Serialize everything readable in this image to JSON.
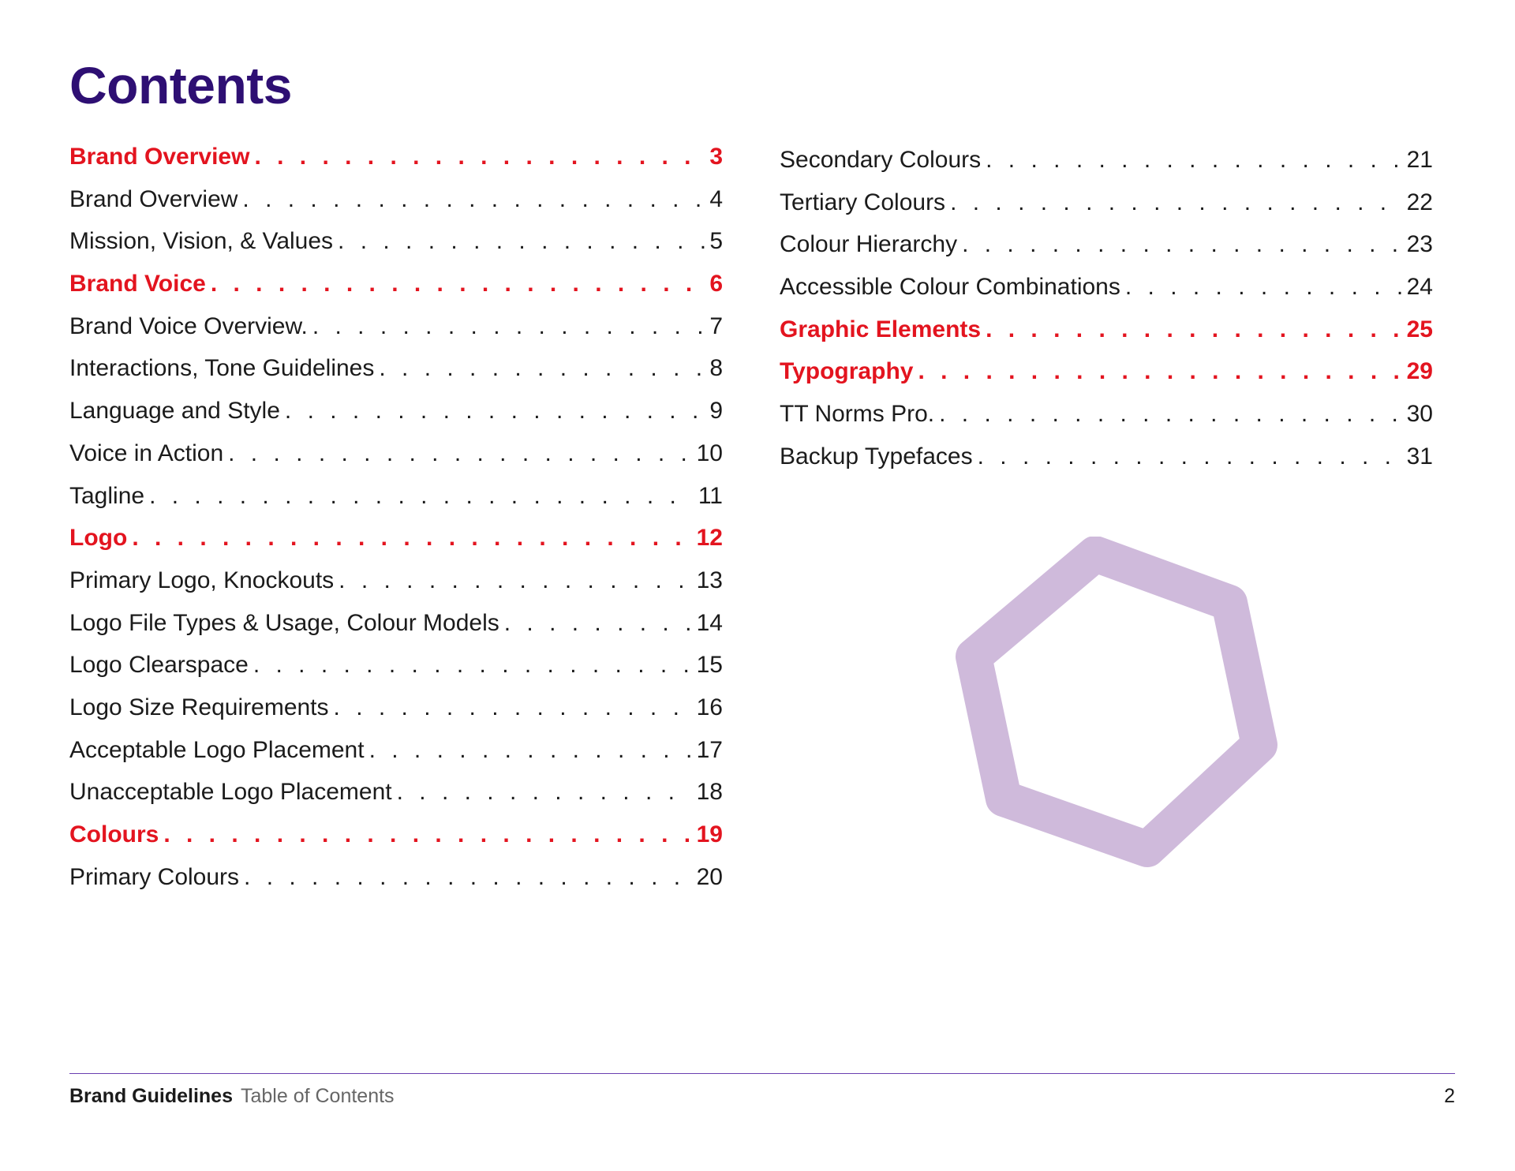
{
  "page": {
    "title": "Contents"
  },
  "colors": {
    "title": "#2e0f73",
    "section": "#e3141f",
    "text": "#1b1b1b",
    "decor": "#cfbadb",
    "rule": "#6a3fb0"
  },
  "toc": {
    "left": [
      {
        "text": "Brand Overview",
        "page": "3",
        "section": true
      },
      {
        "text": "Brand Overview",
        "page": "4",
        "section": false
      },
      {
        "text": "Mission, Vision, & Values",
        "page": "5",
        "section": false
      },
      {
        "text": "Brand Voice",
        "page": "6",
        "section": true
      },
      {
        "text": "Brand Voice Overview.",
        "page": "7",
        "section": false
      },
      {
        "text": "Interactions, Tone Guidelines",
        "page": "8",
        "section": false
      },
      {
        "text": "Language and Style",
        "page": "9",
        "section": false
      },
      {
        "text": "Voice in Action",
        "page": "10",
        "section": false
      },
      {
        "text": "Tagline",
        "page": "11",
        "section": false
      },
      {
        "text": "Logo",
        "page": "12",
        "section": true
      },
      {
        "text": "Primary Logo, Knockouts",
        "page": "13",
        "section": false
      },
      {
        "text": "Logo File Types & Usage, Colour Models",
        "page": "14",
        "section": false
      },
      {
        "text": "Logo Clearspace",
        "page": "15",
        "section": false
      },
      {
        "text": "Logo Size Requirements",
        "page": "16",
        "section": false
      },
      {
        "text": "Acceptable Logo Placement",
        "page": "17",
        "section": false
      },
      {
        "text": "Unacceptable Logo Placement",
        "page": "18",
        "section": false
      },
      {
        "text": "Colours",
        "page": "19",
        "section": true
      },
      {
        "text": "Primary Colours",
        "page": "20",
        "section": false
      }
    ],
    "right": [
      {
        "text": "Secondary Colours",
        "page": "21",
        "section": false
      },
      {
        "text": "Tertiary Colours",
        "page": "22",
        "section": false
      },
      {
        "text": "Colour Hierarchy",
        "page": "23",
        "section": false
      },
      {
        "text": "Accessible Colour Combinations",
        "page": "24",
        "section": false
      },
      {
        "text": "Graphic Elements",
        "page": "25",
        "section": true
      },
      {
        "text": "Typography",
        "page": "29",
        "section": true
      },
      {
        "text": "TT Norms Pro.",
        "page": "30",
        "section": false
      },
      {
        "text": "Backup Typefaces",
        "page": "31",
        "section": false
      }
    ]
  },
  "decor": {
    "icon": "hexagon-outline-icon"
  },
  "footer": {
    "doc_title": "Brand Guidelines",
    "section_title": "Table of Contents",
    "page_number": "2"
  }
}
